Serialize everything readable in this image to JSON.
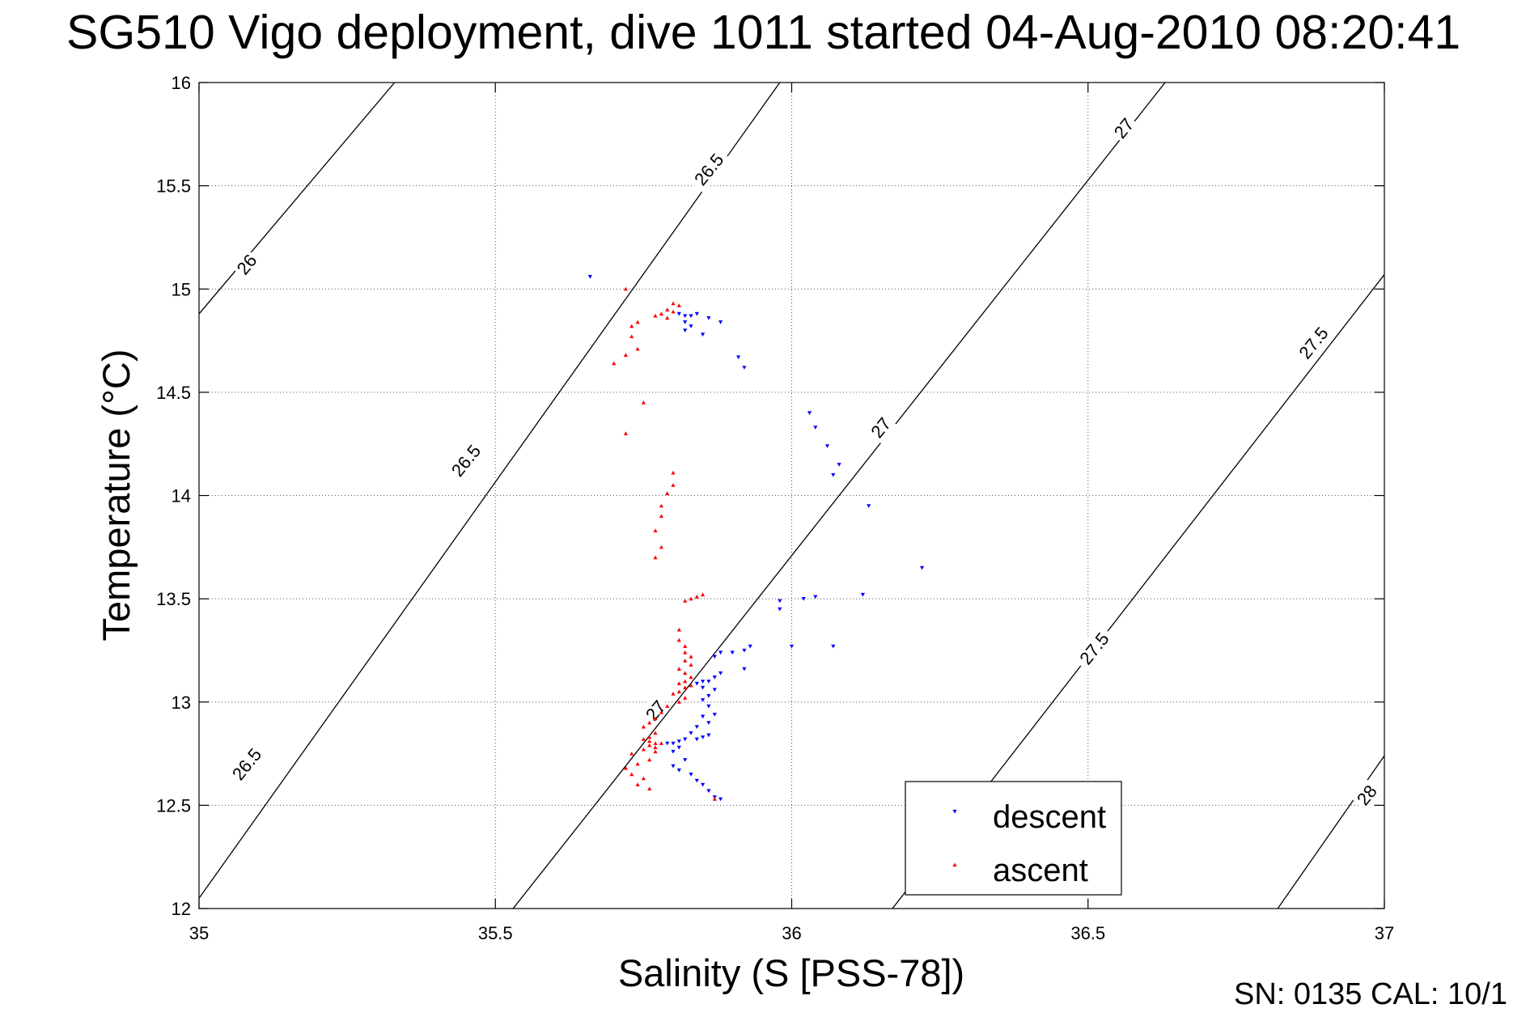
{
  "title": "SG510 Vigo deployment, dive 1011 started 04-Aug-2010 08:20:41",
  "footer": "SN: 0135  CAL: 10/1",
  "chart_data": {
    "type": "scatter",
    "title": "SG510 Vigo deployment, dive 1011 started 04-Aug-2010 08:20:41",
    "xlabel": "Salinity (S [PSS-78])",
    "ylabel": "Temperature (°C)",
    "xlim": [
      35,
      37
    ],
    "ylim": [
      12,
      16
    ],
    "xticks": [
      "35",
      "35.5",
      "36",
      "36.5",
      "37"
    ],
    "yticks": [
      "12",
      "12.5",
      "13",
      "13.5",
      "14",
      "14.5",
      "15",
      "15.5",
      "16"
    ],
    "grid": true,
    "legend_position": "bottom-right",
    "colors": {
      "descent": "#0000ff",
      "ascent": "#ff0000",
      "contour": "#000000"
    },
    "contours": [
      {
        "label": "26",
        "points": [
          [
            35.0,
            14.88
          ],
          [
            35.33,
            16.0
          ]
        ]
      },
      {
        "label": "26.5",
        "points": [
          [
            35.0,
            12.05
          ],
          [
            35.98,
            16.0
          ]
        ]
      },
      {
        "label": "27",
        "points": [
          [
            35.53,
            12.0
          ],
          [
            36.63,
            16.0
          ]
        ]
      },
      {
        "label": "27.5",
        "points": [
          [
            36.17,
            12.0
          ],
          [
            37.0,
            15.07
          ]
        ]
      },
      {
        "label": "28",
        "points": [
          [
            36.82,
            12.0
          ],
          [
            37.0,
            12.74
          ]
        ]
      }
    ],
    "contour_labels": [
      {
        "text": "26",
        "x": 35.08,
        "y": 15.12
      },
      {
        "text": "26.5",
        "x": 35.86,
        "y": 15.58
      },
      {
        "text": "26.5",
        "x": 35.45,
        "y": 14.17
      },
      {
        "text": "26.5",
        "x": 35.08,
        "y": 12.7
      },
      {
        "text": "27",
        "x": 36.56,
        "y": 15.78
      },
      {
        "text": "27",
        "x": 36.15,
        "y": 14.33
      },
      {
        "text": "27",
        "x": 35.77,
        "y": 12.96
      },
      {
        "text": "27.5",
        "x": 36.88,
        "y": 14.74
      },
      {
        "text": "27.5",
        "x": 36.51,
        "y": 13.26
      },
      {
        "text": "28",
        "x": 36.97,
        "y": 12.55
      }
    ],
    "series": [
      {
        "name": "descent",
        "marker": "triangle-down",
        "points": [
          [
            35.66,
            15.06
          ],
          [
            35.81,
            14.88
          ],
          [
            35.82,
            14.87
          ],
          [
            35.83,
            14.87
          ],
          [
            35.84,
            14.88
          ],
          [
            35.86,
            14.86
          ],
          [
            35.88,
            14.84
          ],
          [
            35.82,
            14.84
          ],
          [
            35.83,
            14.82
          ],
          [
            35.82,
            14.8
          ],
          [
            35.85,
            14.78
          ],
          [
            35.91,
            14.67
          ],
          [
            35.92,
            14.62
          ],
          [
            36.03,
            14.4
          ],
          [
            36.04,
            14.33
          ],
          [
            36.06,
            14.24
          ],
          [
            36.08,
            14.15
          ],
          [
            36.07,
            14.1
          ],
          [
            36.13,
            13.95
          ],
          [
            36.22,
            13.65
          ],
          [
            35.98,
            13.49
          ],
          [
            36.02,
            13.5
          ],
          [
            36.04,
            13.51
          ],
          [
            36.12,
            13.52
          ],
          [
            35.98,
            13.45
          ],
          [
            36.0,
            13.27
          ],
          [
            36.07,
            13.27
          ],
          [
            35.93,
            13.27
          ],
          [
            35.92,
            13.25
          ],
          [
            35.9,
            13.24
          ],
          [
            35.88,
            13.24
          ],
          [
            35.87,
            13.22
          ],
          [
            35.92,
            13.16
          ],
          [
            35.88,
            13.14
          ],
          [
            35.87,
            13.12
          ],
          [
            35.86,
            13.1
          ],
          [
            35.85,
            13.1
          ],
          [
            35.84,
            13.09
          ],
          [
            35.85,
            13.07
          ],
          [
            35.87,
            13.06
          ],
          [
            35.86,
            13.03
          ],
          [
            35.85,
            13.01
          ],
          [
            35.86,
            12.98
          ],
          [
            35.87,
            12.94
          ],
          [
            35.85,
            12.93
          ],
          [
            35.86,
            12.9
          ],
          [
            35.84,
            12.88
          ],
          [
            35.83,
            12.85
          ],
          [
            35.86,
            12.84
          ],
          [
            35.85,
            12.83
          ],
          [
            35.84,
            12.82
          ],
          [
            35.82,
            12.82
          ],
          [
            35.81,
            12.81
          ],
          [
            35.8,
            12.8
          ],
          [
            35.79,
            12.8
          ],
          [
            35.81,
            12.78
          ],
          [
            35.8,
            12.76
          ],
          [
            35.82,
            12.72
          ],
          [
            35.8,
            12.69
          ],
          [
            35.81,
            12.67
          ],
          [
            35.83,
            12.65
          ],
          [
            35.84,
            12.62
          ],
          [
            35.85,
            12.6
          ],
          [
            35.86,
            12.57
          ],
          [
            35.87,
            12.54
          ],
          [
            35.88,
            12.53
          ]
        ]
      },
      {
        "name": "ascent",
        "marker": "triangle-up",
        "points": [
          [
            35.72,
            15.0
          ],
          [
            35.8,
            14.93
          ],
          [
            35.81,
            14.92
          ],
          [
            35.79,
            14.9
          ],
          [
            35.8,
            14.89
          ],
          [
            35.78,
            14.88
          ],
          [
            35.77,
            14.87
          ],
          [
            35.79,
            14.86
          ],
          [
            35.74,
            14.84
          ],
          [
            35.73,
            14.82
          ],
          [
            35.73,
            14.77
          ],
          [
            35.74,
            14.71
          ],
          [
            35.72,
            14.68
          ],
          [
            35.7,
            14.64
          ],
          [
            35.75,
            14.45
          ],
          [
            35.72,
            14.3
          ],
          [
            35.8,
            14.11
          ],
          [
            35.8,
            14.05
          ],
          [
            35.79,
            14.01
          ],
          [
            35.78,
            13.95
          ],
          [
            35.78,
            13.9
          ],
          [
            35.77,
            13.83
          ],
          [
            35.78,
            13.75
          ],
          [
            35.77,
            13.7
          ],
          [
            35.85,
            13.52
          ],
          [
            35.84,
            13.51
          ],
          [
            35.83,
            13.5
          ],
          [
            35.82,
            13.49
          ],
          [
            35.81,
            13.35
          ],
          [
            35.81,
            13.3
          ],
          [
            35.82,
            13.27
          ],
          [
            35.82,
            13.24
          ],
          [
            35.83,
            13.22
          ],
          [
            35.82,
            13.2
          ],
          [
            35.83,
            13.18
          ],
          [
            35.81,
            13.16
          ],
          [
            35.82,
            13.14
          ],
          [
            35.83,
            13.12
          ],
          [
            35.82,
            13.1
          ],
          [
            35.81,
            13.09
          ],
          [
            35.83,
            13.08
          ],
          [
            35.82,
            13.07
          ],
          [
            35.81,
            13.05
          ],
          [
            35.8,
            13.04
          ],
          [
            35.82,
            13.02
          ],
          [
            35.81,
            13.0
          ],
          [
            35.79,
            12.98
          ],
          [
            35.78,
            12.95
          ],
          [
            35.77,
            12.92
          ],
          [
            35.76,
            12.9
          ],
          [
            35.75,
            12.88
          ],
          [
            35.77,
            12.85
          ],
          [
            35.76,
            12.83
          ],
          [
            35.75,
            12.82
          ],
          [
            35.76,
            12.81
          ],
          [
            35.77,
            12.8
          ],
          [
            35.78,
            12.8
          ],
          [
            35.76,
            12.79
          ],
          [
            35.77,
            12.78
          ],
          [
            35.75,
            12.77
          ],
          [
            35.77,
            12.76
          ],
          [
            35.73,
            12.75
          ],
          [
            35.76,
            12.72
          ],
          [
            35.74,
            12.7
          ],
          [
            35.72,
            12.68
          ],
          [
            35.73,
            12.65
          ],
          [
            35.75,
            12.63
          ],
          [
            35.74,
            12.6
          ],
          [
            35.76,
            12.58
          ],
          [
            35.87,
            12.53
          ]
        ]
      }
    ]
  }
}
